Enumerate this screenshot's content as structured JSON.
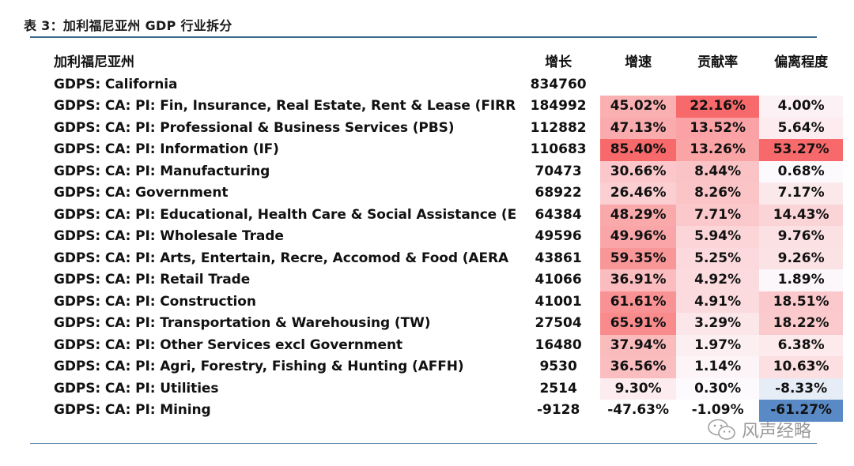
{
  "page": {
    "title": "表 3：加利福尼亚州 GDP 行业拆分"
  },
  "table": {
    "headers": {
      "name": "加利福尼亚州",
      "gain": "增长",
      "speed": "增速",
      "contrib": "贡献率",
      "dev": "偏离程度"
    },
    "rows": [
      {
        "name": "GDPS: California",
        "gain": "834760",
        "speed": "",
        "contrib": "",
        "dev": "",
        "speed_v": null,
        "contrib_v": null,
        "dev_v": null
      },
      {
        "name": "GDPS: CA: PI: Fin, Insurance, Real Estate, Rent & Lease (FIRR",
        "gain": "184992",
        "speed": "45.02%",
        "contrib": "22.16%",
        "dev": "4.00%",
        "speed_v": 45.02,
        "contrib_v": 22.16,
        "dev_v": 4.0
      },
      {
        "name": "GDPS: CA: PI: Professional & Business Services (PBS)",
        "gain": "112882",
        "speed": "47.13%",
        "contrib": "13.52%",
        "dev": "5.64%",
        "speed_v": 47.13,
        "contrib_v": 13.52,
        "dev_v": 5.64
      },
      {
        "name": "GDPS: CA: PI: Information (IF)",
        "gain": "110683",
        "speed": "85.40%",
        "contrib": "13.26%",
        "dev": "53.27%",
        "speed_v": 85.4,
        "contrib_v": 13.26,
        "dev_v": 53.27
      },
      {
        "name": "GDPS: CA: PI: Manufacturing",
        "gain": "70473",
        "speed": "30.66%",
        "contrib": "8.44%",
        "dev": "0.68%",
        "speed_v": 30.66,
        "contrib_v": 8.44,
        "dev_v": 0.68
      },
      {
        "name": "GDPS: CA: Government",
        "gain": "68922",
        "speed": "26.46%",
        "contrib": "8.26%",
        "dev": "7.17%",
        "speed_v": 26.46,
        "contrib_v": 8.26,
        "dev_v": 7.17
      },
      {
        "name": "GDPS: CA: PI: Educational, Health Care & Social Assistance (E",
        "gain": "64384",
        "speed": "48.29%",
        "contrib": "7.71%",
        "dev": "14.43%",
        "speed_v": 48.29,
        "contrib_v": 7.71,
        "dev_v": 14.43
      },
      {
        "name": "GDPS: CA: PI: Wholesale Trade",
        "gain": "49596",
        "speed": "49.96%",
        "contrib": "5.94%",
        "dev": "9.76%",
        "speed_v": 49.96,
        "contrib_v": 5.94,
        "dev_v": 9.76
      },
      {
        "name": "GDPS: CA: PI: Arts, Entertain, Recre, Accomod & Food (AERA",
        "gain": "43861",
        "speed": "59.35%",
        "contrib": "5.25%",
        "dev": "9.26%",
        "speed_v": 59.35,
        "contrib_v": 5.25,
        "dev_v": 9.26
      },
      {
        "name": "GDPS: CA: PI: Retail Trade",
        "gain": "41066",
        "speed": "36.91%",
        "contrib": "4.92%",
        "dev": "1.89%",
        "speed_v": 36.91,
        "contrib_v": 4.92,
        "dev_v": 1.89
      },
      {
        "name": "GDPS: CA: PI: Construction",
        "gain": "41001",
        "speed": "61.61%",
        "contrib": "4.91%",
        "dev": "18.51%",
        "speed_v": 61.61,
        "contrib_v": 4.91,
        "dev_v": 18.51
      },
      {
        "name": "GDPS: CA: PI: Transportation & Warehousing (TW)",
        "gain": "27504",
        "speed": "65.91%",
        "contrib": "3.29%",
        "dev": "18.22%",
        "speed_v": 65.91,
        "contrib_v": 3.29,
        "dev_v": 18.22
      },
      {
        "name": "GDPS: CA: PI: Other Services excl Government",
        "gain": "16480",
        "speed": "37.94%",
        "contrib": "1.97%",
        "dev": "6.38%",
        "speed_v": 37.94,
        "contrib_v": 1.97,
        "dev_v": 6.38
      },
      {
        "name": "GDPS: CA: PI: Agri, Forestry, Fishing & Hunting (AFFH)",
        "gain": "9530",
        "speed": "36.56%",
        "contrib": "1.14%",
        "dev": "10.63%",
        "speed_v": 36.56,
        "contrib_v": 1.14,
        "dev_v": 10.63
      },
      {
        "name": "GDPS: CA: PI: Utilities",
        "gain": "2514",
        "speed": "9.30%",
        "contrib": "0.30%",
        "dev": "-8.33%",
        "speed_v": 9.3,
        "contrib_v": 0.3,
        "dev_v": -8.33
      },
      {
        "name": "GDPS: CA: PI: Mining",
        "gain": "-9128",
        "speed": "-47.63%",
        "contrib": "-1.09%",
        "dev": "-61.27%",
        "speed_v": -47.63,
        "contrib_v": -1.09,
        "dev_v": -61.27
      }
    ]
  },
  "watermark": {
    "text": "风声经略",
    "icon": "wechat-icon"
  },
  "colors": {
    "heat_high": "#f8696b",
    "heat_low": "#5a8ac6",
    "heat_mid": "#fcfcff",
    "rule": "#3f6a8c"
  }
}
